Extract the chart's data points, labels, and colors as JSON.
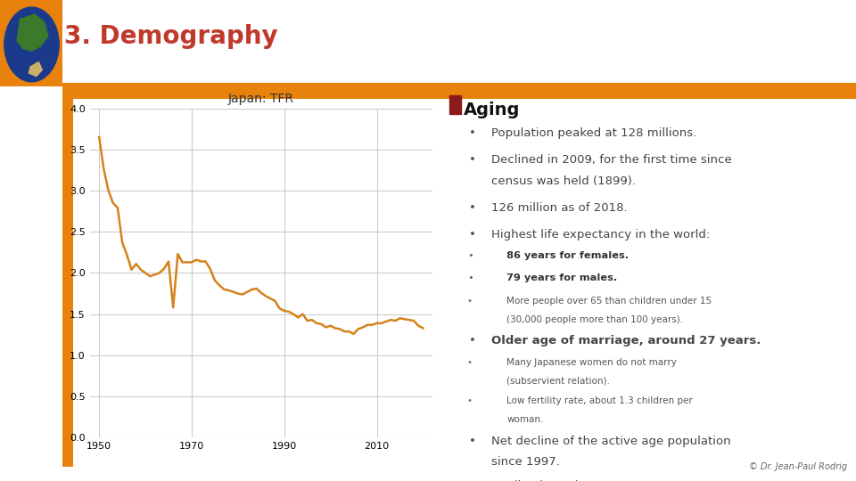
{
  "title": "3. Demography",
  "title_color": "#C0392B",
  "orange_bar_color": "#E8820C",
  "chart_title": "Japan: TFR",
  "background_color": "#FFFFFF",
  "chart_bg": "#FFFFFF",
  "grid_color": "#CCCCCC",
  "tfr_years": [
    1950,
    1951,
    1952,
    1953,
    1954,
    1955,
    1956,
    1957,
    1958,
    1959,
    1960,
    1961,
    1962,
    1963,
    1964,
    1965,
    1966,
    1967,
    1968,
    1969,
    1970,
    1971,
    1972,
    1973,
    1974,
    1975,
    1976,
    1977,
    1978,
    1979,
    1980,
    1981,
    1982,
    1983,
    1984,
    1985,
    1986,
    1987,
    1988,
    1989,
    1990,
    1991,
    1992,
    1993,
    1994,
    1995,
    1996,
    1997,
    1998,
    1999,
    2000,
    2001,
    2002,
    2003,
    2004,
    2005,
    2006,
    2007,
    2008,
    2009,
    2010,
    2011,
    2012,
    2013,
    2014,
    2015,
    2016,
    2017,
    2018,
    2019,
    2020
  ],
  "tfr_values": [
    3.65,
    3.26,
    3.0,
    2.85,
    2.79,
    2.37,
    2.22,
    2.04,
    2.11,
    2.04,
    2.0,
    1.96,
    1.98,
    2.0,
    2.05,
    2.14,
    1.58,
    2.23,
    2.13,
    2.13,
    2.13,
    2.16,
    2.14,
    2.14,
    2.05,
    1.91,
    1.85,
    1.8,
    1.79,
    1.77,
    1.75,
    1.74,
    1.77,
    1.8,
    1.81,
    1.76,
    1.72,
    1.69,
    1.66,
    1.57,
    1.54,
    1.53,
    1.5,
    1.46,
    1.5,
    1.42,
    1.43,
    1.39,
    1.38,
    1.34,
    1.36,
    1.33,
    1.32,
    1.29,
    1.29,
    1.26,
    1.32,
    1.34,
    1.37,
    1.37,
    1.39,
    1.39,
    1.41,
    1.43,
    1.42,
    1.45,
    1.44,
    1.43,
    1.42,
    1.36,
    1.33
  ],
  "line_color": "#D4821A",
  "ylim": [
    0,
    4
  ],
  "yticks": [
    0,
    0.5,
    1,
    1.5,
    2,
    2.5,
    3,
    3.5,
    4
  ],
  "xticks": [
    1950,
    1970,
    1990,
    2010
  ],
  "bullet_square_color": "#8B1A1A",
  "aging_title": "Aging",
  "text_color": "#444444",
  "footer": "© Dr. Jean-Paul Rodrig",
  "globe_bg": "#E8820C",
  "left_bar_color": "#E8820C"
}
